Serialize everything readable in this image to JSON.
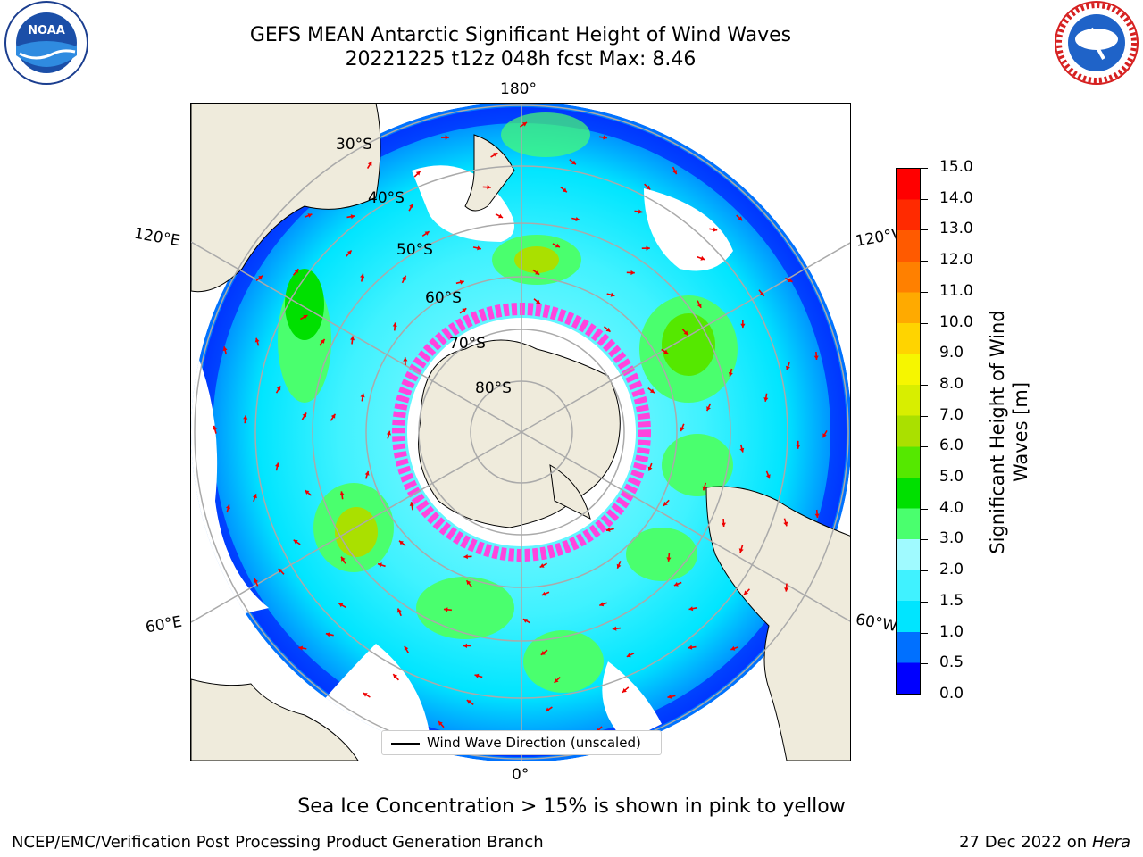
{
  "title": {
    "line1": "GEFS MEAN Antarctic Significant Height of Wind Waves",
    "line2": "20221225 t12z 048h fcst   Max: 8.46"
  },
  "map": {
    "longitude_labels": {
      "top": "180°",
      "bottom": "0°",
      "upper_left": "120°E",
      "upper_right": "120°W",
      "lower_left": "60°E",
      "lower_right": "60°W"
    },
    "latitude_labels": [
      "30°S",
      "40°S",
      "50°S",
      "60°S",
      "70°S",
      "80°S"
    ],
    "legend": "Wind Wave Direction (unscaled)",
    "arrow_color": "#ee0000",
    "land_color": "#efebdc"
  },
  "colorbar": {
    "label_line1": "Significant Height of Wind",
    "label_line2": "Waves [m]",
    "ticks": [
      "0.0",
      "0.5",
      "1.0",
      "1.5",
      "2.0",
      "3.0",
      "4.0",
      "5.0",
      "6.0",
      "7.0",
      "8.0",
      "9.0",
      "10.0",
      "11.0",
      "12.0",
      "13.0",
      "14.0",
      "15.0"
    ],
    "colors": [
      "#0000ff",
      "#0070ff",
      "#00e5ff",
      "#40f2ff",
      "#a0faff",
      "#4aff6e",
      "#00e000",
      "#55e800",
      "#aae000",
      "#d8ee00",
      "#f6f600",
      "#ffd400",
      "#ffaa00",
      "#ff8000",
      "#ff5a00",
      "#ff2a00",
      "#ff0000"
    ]
  },
  "footnote": "Sea Ice Concentration > 15% is shown in pink to yellow",
  "credit_left": "NCEP/EMC/Verification Post Processing Product Generation Branch",
  "credit_right_date": "27 Dec 2022 on",
  "credit_right_host": "Hera"
}
